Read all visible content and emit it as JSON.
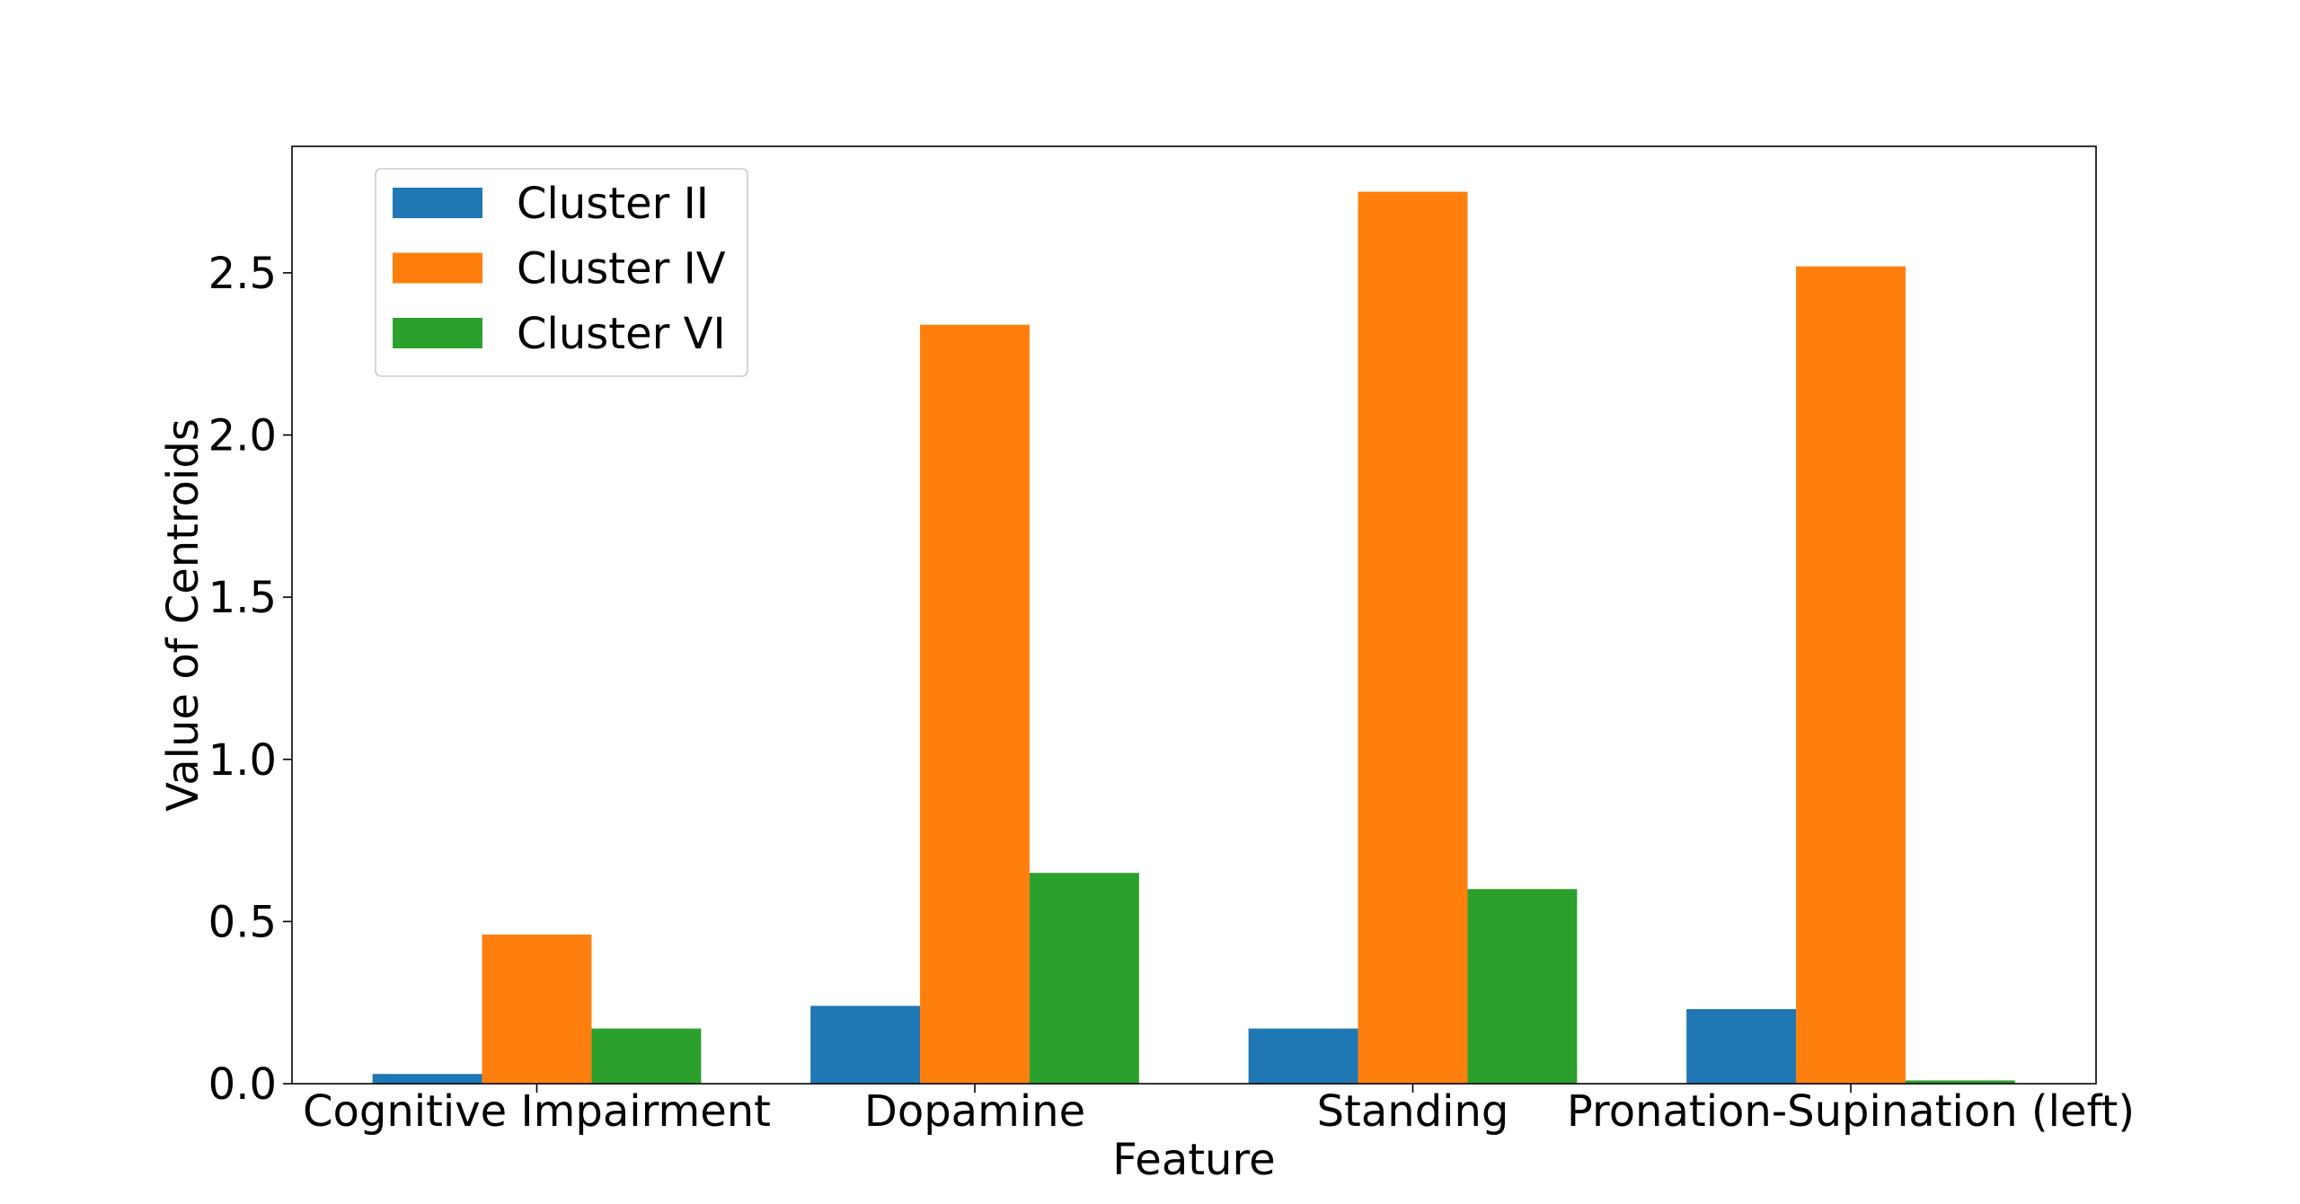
{
  "chart_data": {
    "type": "bar",
    "xlabel": "Feature",
    "ylabel": "Value of Centroids",
    "categories": [
      "Cognitive Impairment",
      "Dopamine",
      "Standing",
      "Pronation-Supination (left)"
    ],
    "series": [
      {
        "name": "Cluster II",
        "color": "#1f77b4",
        "values": [
          0.03,
          0.24,
          0.17,
          0.23
        ]
      },
      {
        "name": "Cluster IV",
        "color": "#ff7f0e",
        "values": [
          0.46,
          2.34,
          2.75,
          2.52
        ]
      },
      {
        "name": "Cluster VI",
        "color": "#2ca02c",
        "values": [
          0.17,
          0.65,
          0.6,
          0.01
        ]
      }
    ],
    "ylim": [
      0,
      2.89
    ],
    "yticks": [
      "0.0",
      "0.5",
      "1.0",
      "1.5",
      "2.0",
      "2.5"
    ],
    "grid": false,
    "legend_position": "top-left"
  }
}
